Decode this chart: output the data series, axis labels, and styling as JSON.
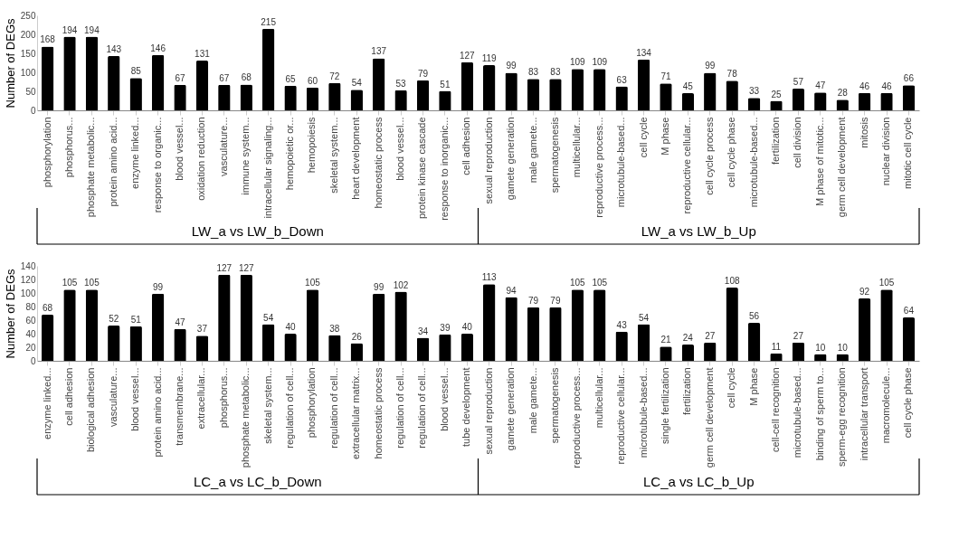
{
  "chart_data": [
    {
      "type": "bar",
      "ylabel": "Number of DEGs",
      "categories": [
        "phosphorylation",
        "phosphorus...",
        "phosphate metabolic...",
        "protein amino acid...",
        "enzyme linked...",
        "response to organic...",
        "blood vessel...",
        "oxidation reduction",
        "vasculature...",
        "immune system...",
        "intracellular signaling...",
        "hemopoietic or...",
        "hemopoiesis",
        "skeletal system...",
        "heart development",
        "homeostatic process",
        "blood vessel...",
        "protein kinase cascade",
        "response to inorganic...",
        "cell adhesion",
        "sexual reproduction",
        "gamete generation",
        "male gamete...",
        "spermatogenesis",
        "multicellular...",
        "reproductive process...",
        "microtubule-based...",
        "cell cycle",
        "M phase",
        "reproductive cellular...",
        "cell cycle process",
        "cell cycle phase",
        "microtubule-based...",
        "fertilization",
        "cell division",
        "M phase of mitotic...",
        "germ cell development",
        "mitosis",
        "nuclear division",
        "mitotic cell cycle"
      ],
      "values": [
        168,
        194,
        194,
        143,
        85,
        146,
        67,
        131,
        67,
        68,
        215,
        65,
        60,
        72,
        54,
        137,
        53,
        79,
        51,
        127,
        119,
        99,
        83,
        83,
        109,
        109,
        63,
        134,
        71,
        45,
        99,
        78,
        33,
        25,
        57,
        47,
        28,
        46,
        46,
        66
      ],
      "color": "#000000",
      "ylim": [
        0,
        250
      ],
      "yticks": [
        0,
        50,
        100,
        150,
        200,
        250
      ],
      "grid": false,
      "legend": false,
      "data_labels": true,
      "annotations": [
        "LW_a vs LW_b_Down",
        "LW_a vs LW_b_Up"
      ]
    },
    {
      "type": "bar",
      "ylabel": "Number of DEGs",
      "categories": [
        "enzyme linked...",
        "cell adhesion",
        "biological adhesion",
        "vasculature...",
        "blood vessel...",
        "protein amino acid...",
        "transmembrane...",
        "extracellular...",
        "phosphorus...",
        "phosphate metabolic...",
        "skeletal system...",
        "regulation of cell...",
        "phosphorylation",
        "regulation of cell...",
        "extracellular matrix...",
        "homeostatic process",
        "regulation of cell...",
        "regulation of cell...",
        "blood vessel...",
        "tube development",
        "sexual reproduction",
        "gamete generation",
        "male gamete...",
        "spermatogenesis",
        "reproductive process...",
        "multicellular...",
        "reproductive cellular...",
        "microtubule-based...",
        "single fertilization",
        "fertilization",
        "germ cell development",
        "cell cycle",
        "M phase",
        "cell-cell recognition",
        "microtubule-based...",
        "binding of sperm to...",
        "sperm-egg recognition",
        "intracellular transport",
        "macromolecule...",
        "cell cycle phase"
      ],
      "values": [
        68,
        105,
        105,
        52,
        51,
        99,
        47,
        37,
        127,
        127,
        54,
        40,
        105,
        38,
        26,
        99,
        102,
        34,
        39,
        40,
        113,
        94,
        79,
        79,
        105,
        105,
        43,
        54,
        21,
        24,
        27,
        108,
        56,
        11,
        27,
        10,
        10,
        92,
        105,
        64
      ],
      "color": "#000000",
      "ylim": [
        0,
        140
      ],
      "yticks": [
        0,
        20,
        40,
        60,
        80,
        100,
        120,
        140
      ],
      "grid": false,
      "legend": false,
      "data_labels": true,
      "annotations": [
        "LC_a vs LC_b_Down",
        "LC_a vs LC_b_Up"
      ]
    }
  ]
}
